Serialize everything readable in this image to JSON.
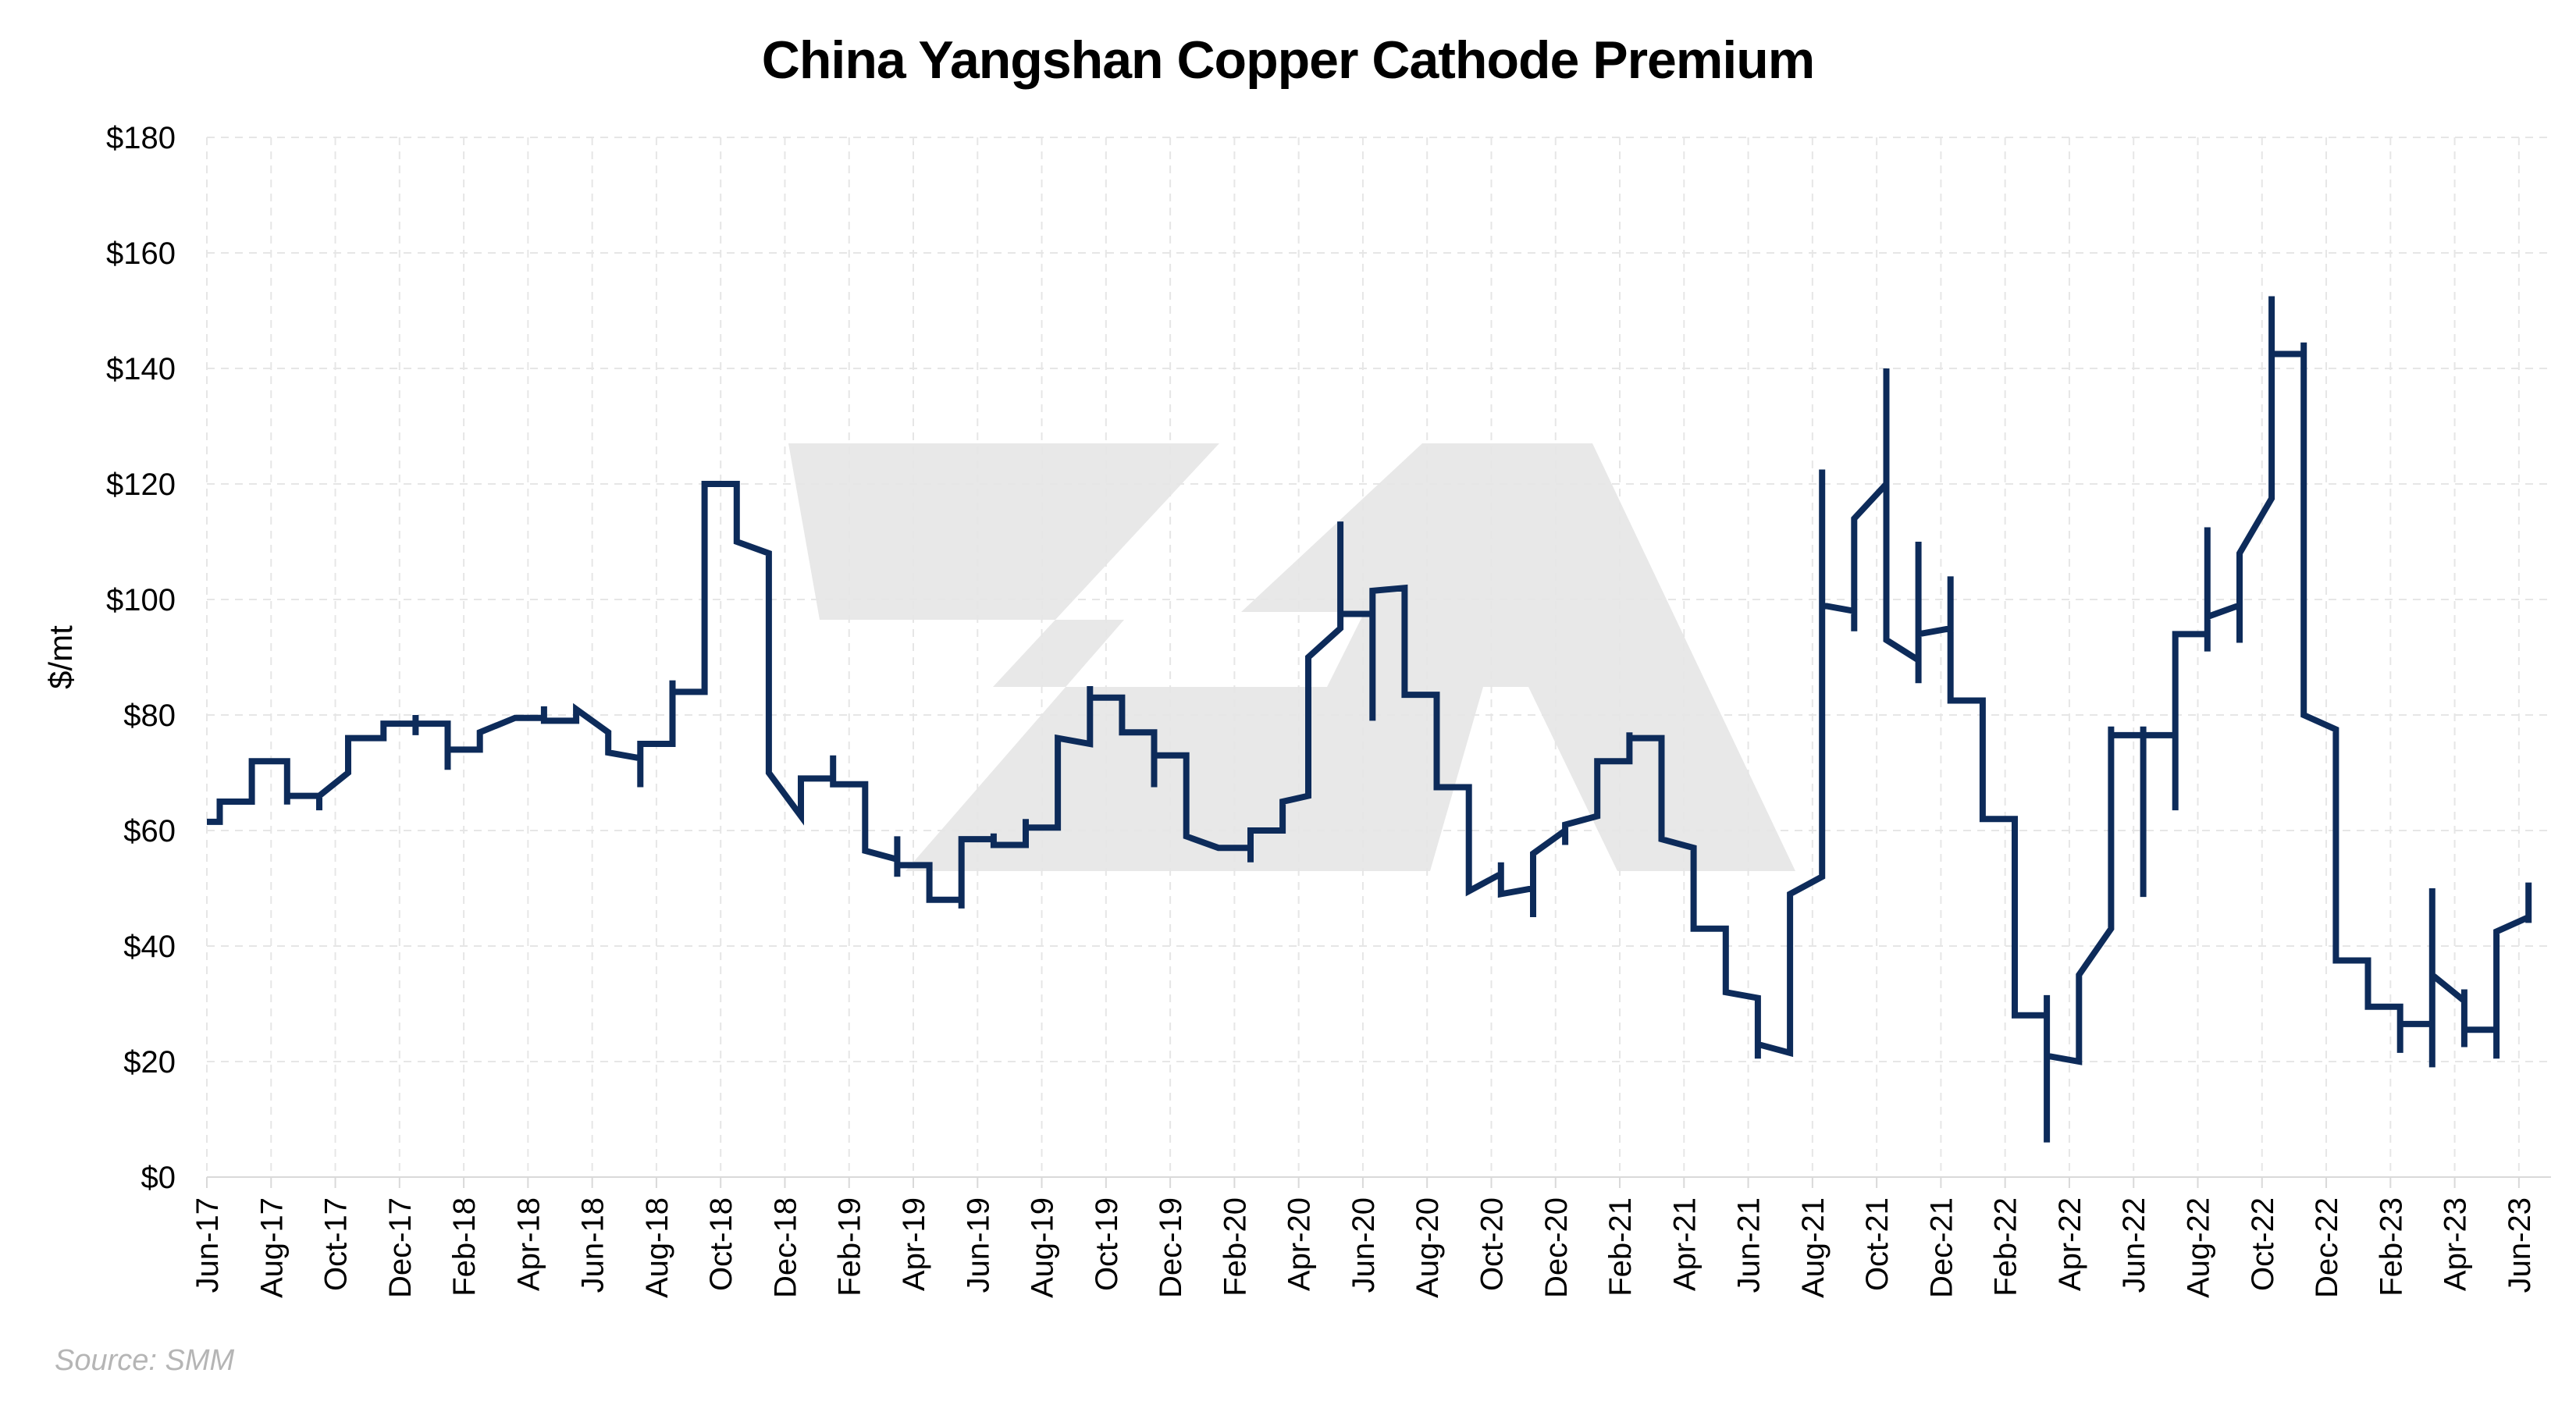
{
  "chart_data": {
    "type": "line",
    "title": "China Yangshan Copper Cathode Premium",
    "ylabel": "$/mt",
    "xlabel": "",
    "source": "Source: SMM",
    "ylim": [
      0,
      180
    ],
    "y_ticks": [
      0,
      20,
      40,
      60,
      80,
      100,
      120,
      140,
      160,
      180
    ],
    "y_tick_labels": [
      "$0",
      "$20",
      "$40",
      "$60",
      "$80",
      "$100",
      "$120",
      "$140",
      "$160",
      "$180"
    ],
    "x_tick_labels": [
      "Jun-17",
      "Aug-17",
      "Oct-17",
      "Dec-17",
      "Feb-18",
      "Apr-18",
      "Jun-18",
      "Aug-18",
      "Oct-18",
      "Dec-18",
      "Feb-19",
      "Apr-19",
      "Jun-19",
      "Aug-19",
      "Oct-19",
      "Dec-19",
      "Feb-20",
      "Apr-20",
      "Jun-20",
      "Aug-20",
      "Oct-20",
      "Dec-20",
      "Feb-21",
      "Apr-21",
      "Jun-21",
      "Aug-21",
      "Oct-21",
      "Dec-21",
      "Feb-22",
      "Apr-22",
      "Jun-22",
      "Aug-22",
      "Oct-22",
      "Dec-22",
      "Feb-23",
      "Apr-23",
      "Jun-23"
    ],
    "x_unit": "months since Jun-17",
    "grid": true,
    "legend": "none",
    "watermark": "ZA logo",
    "colors": {
      "line": "#0d2b5a",
      "grid": "#e6e6e6",
      "watermark": "#e8e8e8",
      "axis": "#d9d9d9"
    },
    "series": [
      {
        "name": "China Yangshan Copper Cathode Premium",
        "points": [
          [
            0.0,
            61.5
          ],
          [
            0.4,
            61.5
          ],
          [
            0.4,
            65
          ],
          [
            1.4,
            65
          ],
          [
            1.4,
            72
          ],
          [
            2.5,
            72
          ],
          [
            2.5,
            64.5
          ],
          [
            2.5,
            66
          ],
          [
            3.5,
            66
          ],
          [
            3.5,
            63.5
          ],
          [
            3.5,
            66
          ],
          [
            4.4,
            70
          ],
          [
            4.4,
            76
          ],
          [
            5.5,
            76
          ],
          [
            5.5,
            78.5
          ],
          [
            6.5,
            78.5
          ],
          [
            6.5,
            76.5
          ],
          [
            6.5,
            80
          ],
          [
            6.5,
            78.5
          ],
          [
            7.5,
            78.5
          ],
          [
            7.5,
            70.5
          ],
          [
            7.5,
            74
          ],
          [
            8.5,
            74
          ],
          [
            8.5,
            77
          ],
          [
            9.6,
            79.5
          ],
          [
            10.5,
            79.5
          ],
          [
            10.5,
            81.5
          ],
          [
            10.5,
            79
          ],
          [
            11.5,
            79
          ],
          [
            11.5,
            81
          ],
          [
            12.5,
            77
          ],
          [
            12.5,
            73.5
          ],
          [
            13.5,
            72.5
          ],
          [
            13.5,
            67.5
          ],
          [
            13.5,
            75
          ],
          [
            14.5,
            75
          ],
          [
            14.5,
            86
          ],
          [
            14.5,
            84
          ],
          [
            15.5,
            84
          ],
          [
            15.5,
            120
          ],
          [
            16.5,
            120
          ],
          [
            16.5,
            110
          ],
          [
            17.5,
            108
          ],
          [
            17.5,
            70
          ],
          [
            18.5,
            62.5
          ],
          [
            18.5,
            69
          ],
          [
            19.5,
            69
          ],
          [
            19.5,
            73
          ],
          [
            19.5,
            68
          ],
          [
            20.5,
            68
          ],
          [
            20.5,
            56.5
          ],
          [
            21.5,
            55
          ],
          [
            21.5,
            59
          ],
          [
            21.5,
            52
          ],
          [
            21.5,
            54
          ],
          [
            22.5,
            54
          ],
          [
            22.5,
            48
          ],
          [
            23.5,
            48
          ],
          [
            23.5,
            46.5
          ],
          [
            23.5,
            58.5
          ],
          [
            24.5,
            58.5
          ],
          [
            24.5,
            59.5
          ],
          [
            24.5,
            57.5
          ],
          [
            25.5,
            57.5
          ],
          [
            25.5,
            62
          ],
          [
            25.5,
            60.5
          ],
          [
            26.5,
            60.5
          ],
          [
            26.5,
            76
          ],
          [
            27.5,
            75
          ],
          [
            27.5,
            85
          ],
          [
            27.5,
            83
          ],
          [
            28.5,
            83
          ],
          [
            28.5,
            77
          ],
          [
            29.5,
            77
          ],
          [
            29.5,
            67.5
          ],
          [
            29.5,
            73
          ],
          [
            30.5,
            73
          ],
          [
            30.5,
            59
          ],
          [
            31.5,
            57
          ],
          [
            32.5,
            57
          ],
          [
            32.5,
            54.5
          ],
          [
            32.5,
            60
          ],
          [
            33.5,
            60
          ],
          [
            33.5,
            65
          ],
          [
            34.3,
            66
          ],
          [
            34.3,
            67
          ],
          [
            34.3,
            90
          ],
          [
            35.3,
            95
          ],
          [
            35.3,
            113.5
          ],
          [
            35.3,
            97.5
          ],
          [
            36.3,
            97.5
          ],
          [
            36.3,
            79
          ],
          [
            36.3,
            101.5
          ],
          [
            37.3,
            102
          ],
          [
            37.3,
            83.5
          ],
          [
            38.3,
            83.5
          ],
          [
            38.3,
            67.5
          ],
          [
            39.3,
            67.5
          ],
          [
            39.3,
            49.5
          ],
          [
            40.3,
            52.5
          ],
          [
            40.3,
            54.5
          ],
          [
            40.3,
            49
          ],
          [
            41.3,
            50
          ],
          [
            41.3,
            45
          ],
          [
            41.3,
            56
          ],
          [
            42.3,
            60
          ],
          [
            42.3,
            57.5
          ],
          [
            42.3,
            61
          ],
          [
            43.3,
            62.5
          ],
          [
            43.3,
            72
          ],
          [
            44.3,
            72
          ],
          [
            44.3,
            77
          ],
          [
            44.3,
            76
          ],
          [
            45.3,
            76
          ],
          [
            45.3,
            58.5
          ],
          [
            46.3,
            57
          ],
          [
            46.3,
            43
          ],
          [
            47.3,
            43
          ],
          [
            47.3,
            32
          ],
          [
            48.3,
            31
          ],
          [
            48.3,
            20.5
          ],
          [
            48.3,
            23
          ],
          [
            49.3,
            21.5
          ],
          [
            49.3,
            49
          ],
          [
            50.3,
            52
          ],
          [
            50.3,
            122.5
          ],
          [
            50.3,
            99
          ],
          [
            51.3,
            98
          ],
          [
            51.3,
            94.5
          ],
          [
            51.3,
            114
          ],
          [
            52.3,
            120
          ],
          [
            52.3,
            140
          ],
          [
            52.3,
            93
          ],
          [
            53.3,
            89.5
          ],
          [
            53.3,
            85.5
          ],
          [
            53.3,
            110
          ],
          [
            53.3,
            94
          ],
          [
            54.3,
            95
          ],
          [
            54.3,
            104
          ],
          [
            54.3,
            82.5
          ],
          [
            55.3,
            82.5
          ],
          [
            55.3,
            62
          ],
          [
            56.3,
            62
          ],
          [
            56.3,
            28
          ],
          [
            57.3,
            28
          ],
          [
            57.3,
            31.5
          ],
          [
            57.3,
            6
          ],
          [
            57.3,
            21
          ],
          [
            58.3,
            20
          ],
          [
            58.3,
            35
          ],
          [
            59.3,
            43
          ],
          [
            59.3,
            78
          ],
          [
            59.3,
            76.5
          ],
          [
            60.3,
            76.5
          ],
          [
            60.3,
            48.5
          ],
          [
            60.3,
            78
          ],
          [
            60.3,
            76.5
          ],
          [
            61.3,
            76.5
          ],
          [
            61.3,
            63.5
          ],
          [
            61.3,
            94
          ],
          [
            62.3,
            94
          ],
          [
            62.3,
            112.5
          ],
          [
            62.3,
            91
          ],
          [
            62.3,
            97
          ],
          [
            63.3,
            99
          ],
          [
            63.3,
            92.5
          ],
          [
            63.3,
            108
          ],
          [
            64.3,
            117.5
          ],
          [
            64.3,
            152.5
          ],
          [
            64.3,
            142.5
          ],
          [
            65.3,
            142.5
          ],
          [
            65.3,
            144.5
          ],
          [
            65.3,
            80
          ],
          [
            66.3,
            77.5
          ],
          [
            66.3,
            37.5
          ],
          [
            67.3,
            37.5
          ],
          [
            67.3,
            29.5
          ],
          [
            68.3,
            29.5
          ],
          [
            68.3,
            21.5
          ],
          [
            68.3,
            26.5
          ],
          [
            69.3,
            26.5
          ],
          [
            69.3,
            19
          ],
          [
            69.3,
            50
          ],
          [
            69.3,
            35
          ],
          [
            70.3,
            30.5
          ],
          [
            70.3,
            32.5
          ],
          [
            70.3,
            22.5
          ],
          [
            70.3,
            25.5
          ],
          [
            71.3,
            25.5
          ],
          [
            71.3,
            20.5
          ],
          [
            71.3,
            42.5
          ],
          [
            72.3,
            45
          ],
          [
            72.3,
            51
          ],
          [
            72.3,
            44
          ]
        ]
      }
    ]
  }
}
